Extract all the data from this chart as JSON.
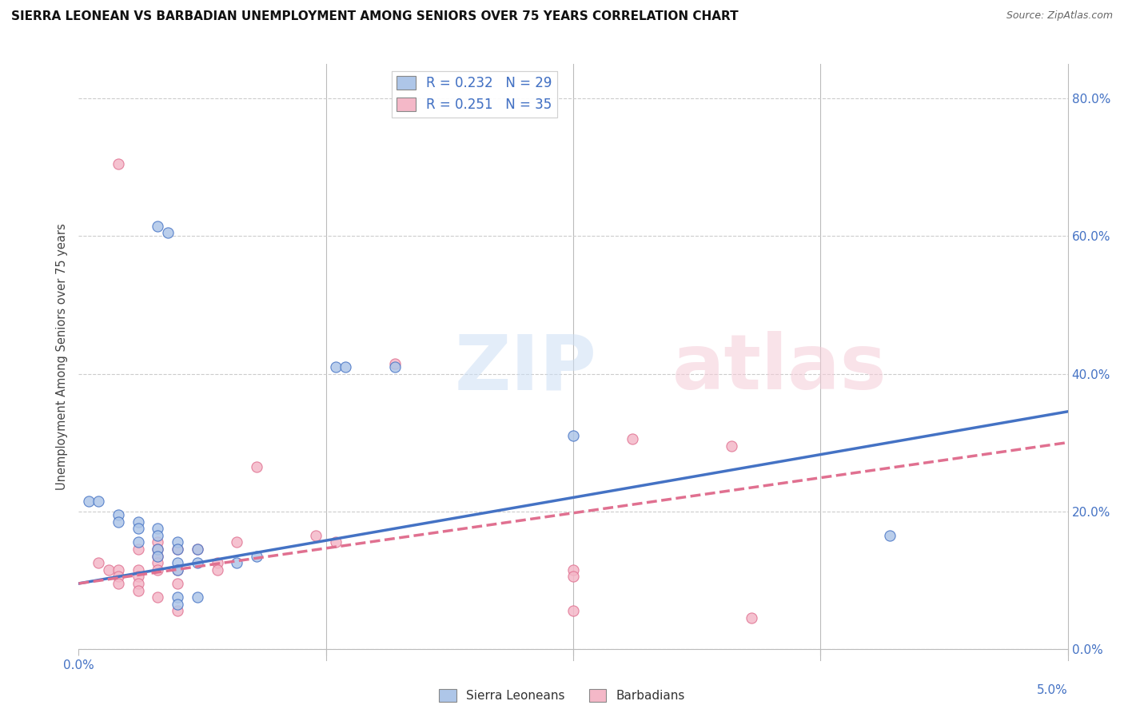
{
  "title": "SIERRA LEONEAN VS BARBADIAN UNEMPLOYMENT AMONG SENIORS OVER 75 YEARS CORRELATION CHART",
  "source": "Source: ZipAtlas.com",
  "ylabel": "Unemployment Among Seniors over 75 years",
  "xlim": [
    0.0,
    0.05
  ],
  "ylim": [
    0.0,
    0.85
  ],
  "yticks": [
    0.0,
    0.2,
    0.4,
    0.6,
    0.8
  ],
  "ytick_labels_right": [
    "0.0%",
    "20.0%",
    "40.0%",
    "60.0%",
    "80.0%"
  ],
  "xtick_positions": [
    0.0,
    0.0125,
    0.025,
    0.0375,
    0.05
  ],
  "sierra_color": "#aec6e8",
  "barbadian_color": "#f4b8c8",
  "sierra_line_color": "#4472c4",
  "barbadian_line_color": "#e07090",
  "sierra_points": [
    [
      0.0005,
      0.215
    ],
    [
      0.001,
      0.215
    ],
    [
      0.002,
      0.195
    ],
    [
      0.002,
      0.185
    ],
    [
      0.003,
      0.185
    ],
    [
      0.003,
      0.175
    ],
    [
      0.003,
      0.155
    ],
    [
      0.004,
      0.175
    ],
    [
      0.004,
      0.165
    ],
    [
      0.004,
      0.145
    ],
    [
      0.004,
      0.135
    ],
    [
      0.005,
      0.155
    ],
    [
      0.005,
      0.145
    ],
    [
      0.005,
      0.125
    ],
    [
      0.005,
      0.115
    ],
    [
      0.005,
      0.075
    ],
    [
      0.005,
      0.065
    ],
    [
      0.006,
      0.145
    ],
    [
      0.006,
      0.125
    ],
    [
      0.006,
      0.075
    ],
    [
      0.008,
      0.125
    ],
    [
      0.009,
      0.135
    ],
    [
      0.013,
      0.41
    ],
    [
      0.0135,
      0.41
    ],
    [
      0.016,
      0.41
    ],
    [
      0.025,
      0.31
    ],
    [
      0.041,
      0.165
    ],
    [
      0.004,
      0.615
    ],
    [
      0.0045,
      0.605
    ]
  ],
  "barbadian_points": [
    [
      0.001,
      0.125
    ],
    [
      0.0015,
      0.115
    ],
    [
      0.002,
      0.115
    ],
    [
      0.002,
      0.105
    ],
    [
      0.002,
      0.095
    ],
    [
      0.003,
      0.115
    ],
    [
      0.003,
      0.105
    ],
    [
      0.003,
      0.095
    ],
    [
      0.003,
      0.085
    ],
    [
      0.003,
      0.145
    ],
    [
      0.004,
      0.155
    ],
    [
      0.004,
      0.145
    ],
    [
      0.004,
      0.135
    ],
    [
      0.004,
      0.125
    ],
    [
      0.004,
      0.115
    ],
    [
      0.004,
      0.075
    ],
    [
      0.005,
      0.145
    ],
    [
      0.005,
      0.115
    ],
    [
      0.005,
      0.095
    ],
    [
      0.005,
      0.055
    ],
    [
      0.006,
      0.145
    ],
    [
      0.007,
      0.125
    ],
    [
      0.007,
      0.115
    ],
    [
      0.008,
      0.155
    ],
    [
      0.009,
      0.265
    ],
    [
      0.012,
      0.165
    ],
    [
      0.013,
      0.155
    ],
    [
      0.016,
      0.415
    ],
    [
      0.025,
      0.115
    ],
    [
      0.025,
      0.105
    ],
    [
      0.025,
      0.055
    ],
    [
      0.033,
      0.295
    ],
    [
      0.002,
      0.705
    ],
    [
      0.028,
      0.305
    ],
    [
      0.034,
      0.045
    ]
  ],
  "sierra_trendline": [
    [
      0.0,
      0.095
    ],
    [
      0.05,
      0.345
    ]
  ],
  "barbadian_trendline": [
    [
      0.0,
      0.095
    ],
    [
      0.05,
      0.3
    ]
  ],
  "sierra_marker_size": 90,
  "barbadian_marker_size": 90
}
